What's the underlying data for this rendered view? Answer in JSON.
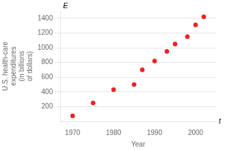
{
  "chart_data": {
    "type": "scatter",
    "x": [
      1970,
      1975,
      1980,
      1985,
      1987,
      1990,
      1993,
      1995,
      1998,
      2000,
      2002
    ],
    "values": [
      75,
      250,
      430,
      500,
      700,
      820,
      950,
      1050,
      1150,
      1310,
      1420
    ],
    "color": "#ee2222",
    "xlabel": "Year",
    "ylabel": [
      "U.S. health-care",
      "expenditures",
      "(in billions",
      "of dollars)"
    ],
    "annotations": [
      "E",
      "t"
    ],
    "xlim": [
      1967,
      2005
    ],
    "ylim": [
      0,
      1500
    ],
    "xticks": [
      1970,
      1980,
      1990,
      2000
    ],
    "yticks": [
      200,
      400,
      600,
      800,
      1000,
      1200,
      1400
    ],
    "grid": "y"
  }
}
